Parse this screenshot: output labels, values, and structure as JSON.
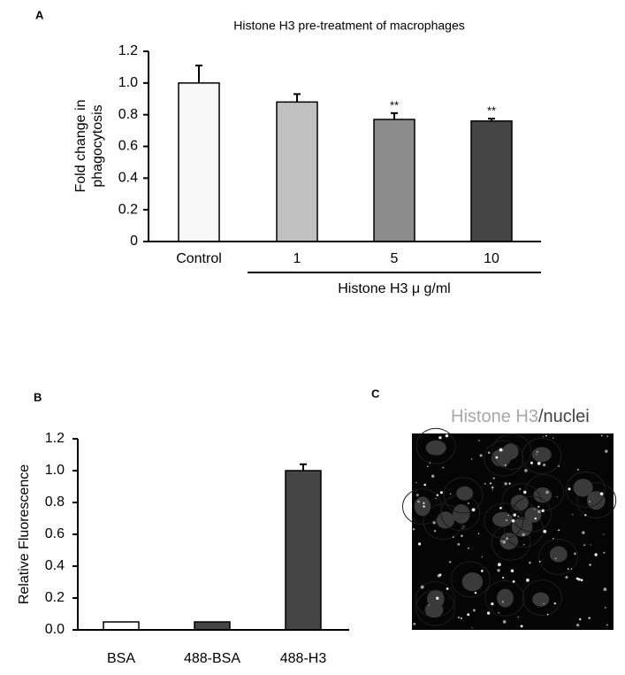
{
  "chart_data": [
    {
      "type": "bar",
      "panel": "A",
      "title": "Histone H3 pre-treatment of macrophages",
      "ylabel_lines": [
        "Fold change in",
        "phagocytosis"
      ],
      "categories": [
        "Control",
        "1",
        "5",
        "10"
      ],
      "x_group_label": "Histone H3  μ g/ml",
      "values": [
        1.0,
        0.88,
        0.77,
        0.76
      ],
      "errors": [
        0.11,
        0.05,
        0.04,
        0.015
      ],
      "colors": [
        "#f8f8f8",
        "#c0c0c0",
        "#8c8c8c",
        "#454545"
      ],
      "annotations": [
        {
          "x": "5",
          "text": "**"
        },
        {
          "x": "10",
          "text": "**"
        }
      ],
      "ylim": [
        0,
        1.2
      ],
      "yticks": [
        0,
        0.2,
        0.4,
        0.6,
        0.8,
        {
          "value": 1,
          "label": "1.0"
        },
        1.2
      ]
    },
    {
      "type": "bar",
      "panel": "B",
      "ylabel_lines": [
        "Relative Fluorescence"
      ],
      "categories": [
        "BSA",
        "488-BSA",
        "488-H3"
      ],
      "values": [
        0.05,
        0.05,
        1.0
      ],
      "errors": [
        null,
        null,
        0.04
      ],
      "colors": [
        "#ffffff",
        "#454545",
        "#454545"
      ],
      "ylim": [
        0,
        1.2
      ],
      "yticks": [
        {
          "value": 0,
          "label": "0.0"
        },
        0.2,
        0.4,
        0.6,
        0.8,
        {
          "value": 1,
          "label": "1.0"
        },
        1.2
      ]
    }
  ],
  "panel_c": {
    "label": "C",
    "title_stain": "Histone H3",
    "title_counterstain": "/nuclei"
  }
}
